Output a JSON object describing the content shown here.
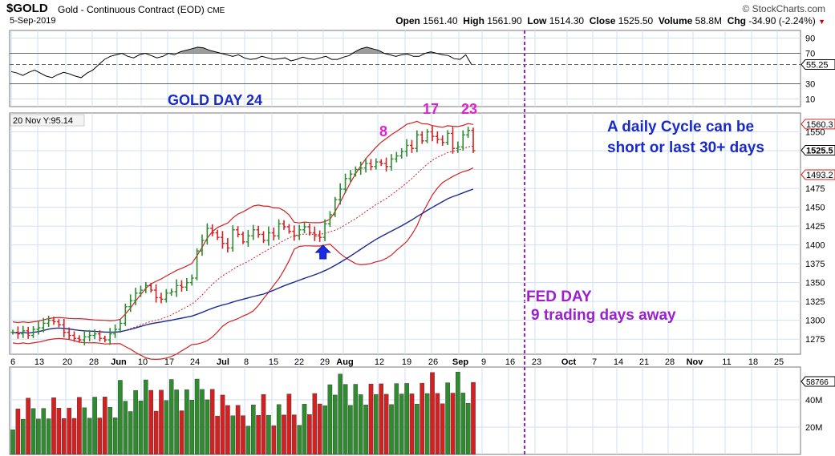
{
  "header": {
    "symbol": "$GOLD",
    "description": "Gold - Continuous Contract (EOD)",
    "exchange": "CME",
    "date": "5-Sep-2019",
    "brand": "© StockCharts.com",
    "open_label": "Open",
    "open": "1561.40",
    "high_label": "High",
    "high": "1561.90",
    "low_label": "Low",
    "low": "1514.30",
    "close_label": "Close",
    "close": "1525.50",
    "volume_label": "Volume",
    "volume": "58.8M",
    "chg_label": "Chg",
    "chg": "-34.90 (-2.24%)"
  },
  "colors": {
    "up": "#2e8b2e",
    "down": "#d42020",
    "ma_fast": "#d42020",
    "ma_slow": "#1a2a8c",
    "bands": "#d42020",
    "annotation_blue": "#1a2ac8",
    "annotation_magenta": "#e020d0",
    "fed_purple": "#9b1fd0",
    "volume_up": "#2e8b2e",
    "volume_down": "#d42020"
  },
  "annotations": {
    "title": "GOLD DAY 24",
    "cycle_line1": "A daily Cycle can be",
    "cycle_line2": "short or last 30+ days",
    "fed_line1": "FED DAY",
    "fed_line2": "9 trading days away",
    "day8": "8",
    "day17": "17",
    "day23": "23",
    "legend_tag": "20 Nov Y:95.14"
  },
  "chart_data": [
    {
      "type": "line",
      "panel": "rsi",
      "y_ticks": [
        "90",
        "70",
        "30",
        "10"
      ],
      "last_value_label": "55.25",
      "ylim": [
        0,
        100
      ],
      "reference_lines": [
        70,
        55.25,
        30
      ],
      "values": [
        46,
        44,
        41,
        45,
        48,
        44,
        40,
        38,
        42,
        45,
        43,
        40,
        38,
        44,
        48,
        55,
        62,
        66,
        68,
        70,
        66,
        64,
        68,
        70,
        67,
        64,
        66,
        70,
        68,
        72,
        74,
        76,
        78,
        77,
        74,
        72,
        70,
        68,
        66,
        68,
        64,
        62,
        63,
        66,
        64,
        62,
        63,
        64,
        60,
        62,
        65,
        63,
        62,
        64,
        66,
        62,
        62,
        65,
        67,
        72,
        76,
        78,
        76,
        74,
        70,
        68,
        66,
        68,
        69,
        66,
        66,
        70,
        72,
        70,
        68,
        67,
        63,
        62,
        68,
        55
      ]
    },
    {
      "type": "candlestick",
      "panel": "price",
      "x_tick_labels": [
        "6",
        "13",
        "20",
        "28",
        "Jun",
        "10",
        "17",
        "24",
        "Jul",
        "8",
        "15",
        "22",
        "29",
        "Aug",
        "12",
        "19",
        "26",
        "Sep",
        "9",
        "16",
        "23",
        "Oct",
        "7",
        "14",
        "21",
        "28",
        "Nov",
        "11",
        "18",
        "25"
      ],
      "y_ticks": [
        "1550",
        "1475",
        "1450",
        "1425",
        "1400",
        "1375",
        "1350",
        "1325",
        "1300",
        "1275"
      ],
      "last_value_labels": [
        "1560.3",
        "1525.5",
        "1493.2"
      ],
      "ylim": [
        1255,
        1575
      ],
      "closes": [
        1284,
        1282,
        1286,
        1280,
        1288,
        1290,
        1296,
        1300,
        1298,
        1294,
        1284,
        1280,
        1276,
        1274,
        1278,
        1280,
        1282,
        1276,
        1274,
        1282,
        1288,
        1296,
        1318,
        1326,
        1336,
        1340,
        1346,
        1340,
        1330,
        1328,
        1336,
        1338,
        1346,
        1344,
        1350,
        1356,
        1392,
        1406,
        1422,
        1416,
        1410,
        1402,
        1396,
        1420,
        1414,
        1404,
        1412,
        1420,
        1414,
        1406,
        1416,
        1412,
        1428,
        1424,
        1418,
        1412,
        1420,
        1424,
        1416,
        1412,
        1410,
        1428,
        1440,
        1460,
        1474,
        1488,
        1494,
        1500,
        1502,
        1508,
        1504,
        1510,
        1508,
        1504,
        1514,
        1518,
        1524,
        1532,
        1528,
        1546,
        1538,
        1550,
        1544,
        1540,
        1536,
        1548,
        1528,
        1530,
        1546,
        1552,
        1525
      ],
      "blue_arrow_index": 60
    },
    {
      "type": "bar",
      "panel": "volume",
      "y_ticks": [
        "40M",
        "20M"
      ],
      "last_value_label": "58766",
      "ylim": [
        0,
        64000
      ]
    }
  ]
}
